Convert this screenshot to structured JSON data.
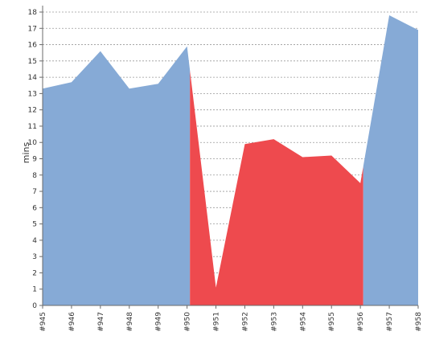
{
  "chart_data": {
    "type": "area",
    "title": "",
    "xlabel": "",
    "ylabel": "mins",
    "ylim": [
      0,
      18
    ],
    "yticks": [
      0,
      1,
      2,
      3,
      4,
      5,
      6,
      7,
      8,
      9,
      10,
      11,
      12,
      13,
      14,
      15,
      16,
      17,
      18
    ],
    "grid": true,
    "categories": [
      "#945",
      "#946",
      "#947",
      "#948",
      "#949",
      "#950",
      "#951",
      "#952",
      "#953",
      "#954",
      "#955",
      "#956",
      "#957",
      "#958"
    ],
    "values": [
      13.3,
      13.7,
      15.6,
      13.3,
      13.6,
      15.9,
      1.1,
      9.9,
      10.2,
      9.1,
      9.2,
      7.5,
      17.8,
      16.9
    ],
    "status": [
      "ok",
      "ok",
      "ok",
      "ok",
      "ok",
      "ok",
      "fail",
      "fail",
      "fail",
      "fail",
      "fail",
      "fail",
      "ok",
      "ok"
    ],
    "colors": {
      "ok": "#86aad6",
      "fail": "#ee4a4e"
    }
  }
}
